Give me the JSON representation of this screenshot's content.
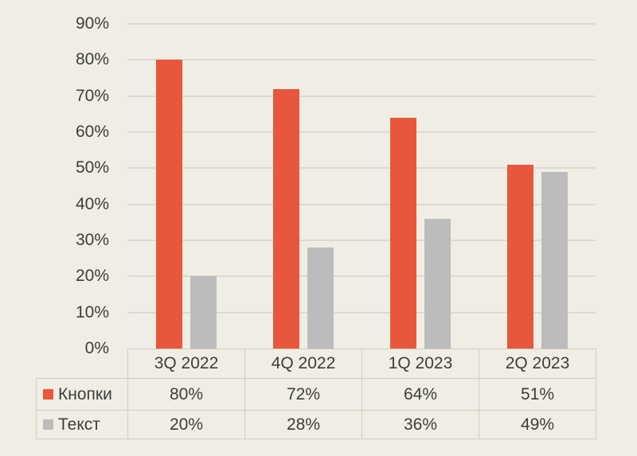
{
  "chart_data": {
    "type": "bar",
    "categories": [
      "3Q 2022",
      "4Q 2022",
      "1Q 2023",
      "2Q 2023"
    ],
    "series": [
      {
        "name": "Кнопки",
        "values": [
          80,
          72,
          64,
          51
        ],
        "color": "#e8573b"
      },
      {
        "name": "Текст",
        "values": [
          20,
          28,
          36,
          49
        ],
        "color": "#bcbcbc"
      }
    ],
    "y_ticks": [
      0,
      10,
      20,
      30,
      40,
      50,
      60,
      70,
      80,
      90
    ],
    "ylim": [
      0,
      90
    ],
    "tick_suffix": "%",
    "value_suffix": "%",
    "grid": true,
    "legend_position": "table-left"
  },
  "colors": {
    "background": "#f0eee4",
    "text": "#3d3d3d",
    "gridline": "#dcdad0",
    "table_border": "#cfccc0",
    "series_buttons": "#e8573b",
    "series_text": "#bcbcbc"
  }
}
